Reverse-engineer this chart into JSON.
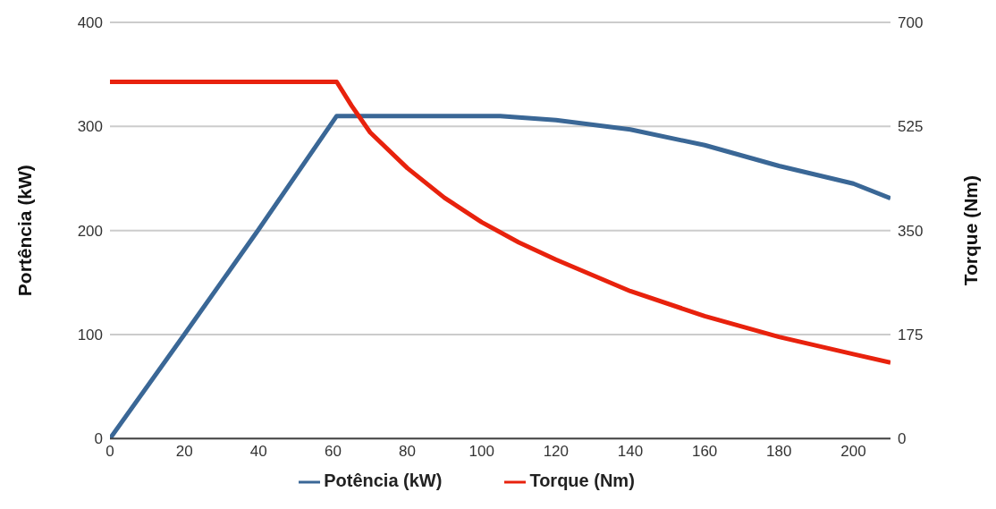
{
  "chart_data": {
    "type": "line",
    "ylabel": "Portência (kW)",
    "y2label": "Torque (Nm)",
    "xlim": [
      0,
      210
    ],
    "xticks": [
      0,
      20,
      40,
      60,
      80,
      100,
      120,
      140,
      160,
      180,
      200
    ],
    "ylim": [
      0,
      400
    ],
    "yticks": [
      0,
      100,
      200,
      300,
      400
    ],
    "y2lim": [
      0,
      700
    ],
    "y2ticks": [
      0,
      175,
      350,
      525,
      700
    ],
    "grid": "y",
    "legend": "bottom",
    "marker": "none",
    "line_style": "solid",
    "series": [
      {
        "name": "Potência (kW)",
        "color": "#3a6796",
        "x": [
          0,
          20,
          40,
          61,
          105,
          120,
          140,
          160,
          180,
          200,
          210
        ],
        "values": [
          0,
          100,
          201,
          310,
          310,
          306,
          297,
          282,
          262,
          245,
          231
        ]
      },
      {
        "name": "Torque (Nm)",
        "color": "#e8220d",
        "axis": "y2",
        "x": [
          0,
          61,
          65,
          70,
          80,
          90,
          100,
          110,
          120,
          140,
          160,
          180,
          200,
          210
        ],
        "values": [
          600,
          600,
          560,
          515,
          455,
          405,
          364,
          330,
          301,
          248,
          206,
          171,
          142,
          128
        ]
      }
    ]
  }
}
